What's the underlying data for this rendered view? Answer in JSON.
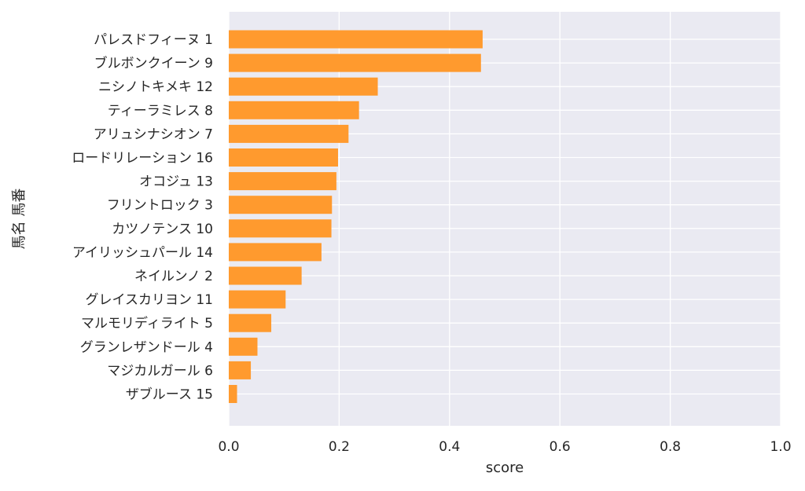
{
  "chart_data": {
    "type": "bar",
    "orientation": "horizontal",
    "categories": [
      "パレスドフィーヌ 1",
      "ブルボンクイーン 9",
      "ニシノトキメキ 12",
      "ティーラミレス 8",
      "アリュシナシオン 7",
      "ロードリレーション 16",
      "オコジュ 13",
      "フリントロック 3",
      "カツノテンス 10",
      "アイリッシュパール 14",
      "ネイルンノ 2",
      "グレイスカリヨン 11",
      "マルモリディライト 5",
      "グランレザンドール 4",
      "マジカルガール 6",
      "ザブルース 15"
    ],
    "values": [
      0.46,
      0.457,
      0.27,
      0.236,
      0.217,
      0.198,
      0.195,
      0.187,
      0.186,
      0.168,
      0.132,
      0.103,
      0.077,
      0.052,
      0.04,
      0.015
    ],
    "xlabel": "score",
    "ylabel": "馬名 馬番",
    "xlim": [
      0,
      1.0
    ],
    "xticks": [
      "0.0",
      "0.2",
      "0.4",
      "0.6",
      "0.8",
      "1.0"
    ],
    "grid": true,
    "colors": {
      "bar": "#ff9a2e",
      "background": "#eaeaf2",
      "grid": "#ffffff"
    }
  }
}
